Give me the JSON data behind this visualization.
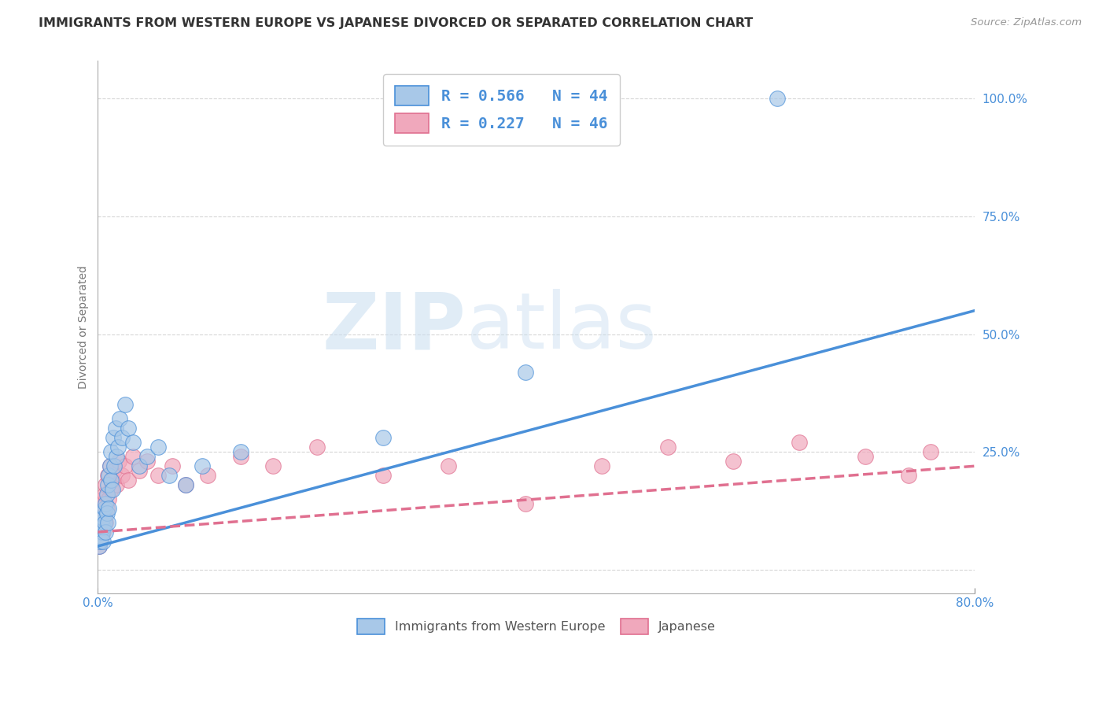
{
  "title": "IMMIGRANTS FROM WESTERN EUROPE VS JAPANESE DIVORCED OR SEPARATED CORRELATION CHART",
  "source_text": "Source: ZipAtlas.com",
  "ylabel": "Divorced or Separated",
  "x_min": 0.0,
  "x_max": 0.8,
  "y_min": -0.05,
  "y_max": 1.08,
  "x_ticks": [
    0.0,
    0.8
  ],
  "x_tick_labels": [
    "0.0%",
    "80.0%"
  ],
  "y_ticks": [
    0.0,
    0.25,
    0.5,
    0.75,
    1.0
  ],
  "y_tick_labels": [
    "",
    "25.0%",
    "50.0%",
    "75.0%",
    "100.0%"
  ],
  "legend_entries": [
    {
      "label": "R = 0.566   N = 44"
    },
    {
      "label": "R = 0.227   N = 46"
    }
  ],
  "legend_bottom_labels": [
    "Immigrants from Western Europe",
    "Japanese"
  ],
  "blue_scatter_x": [
    0.001,
    0.002,
    0.002,
    0.003,
    0.003,
    0.004,
    0.004,
    0.005,
    0.005,
    0.005,
    0.006,
    0.006,
    0.007,
    0.007,
    0.008,
    0.008,
    0.009,
    0.009,
    0.01,
    0.01,
    0.011,
    0.012,
    0.012,
    0.013,
    0.014,
    0.015,
    0.016,
    0.017,
    0.018,
    0.02,
    0.022,
    0.025,
    0.028,
    0.032,
    0.038,
    0.045,
    0.055,
    0.065,
    0.08,
    0.095,
    0.13,
    0.26,
    0.39,
    0.62
  ],
  "blue_scatter_y": [
    0.05,
    0.08,
    0.06,
    0.1,
    0.07,
    0.08,
    0.12,
    0.09,
    0.06,
    0.11,
    0.1,
    0.13,
    0.08,
    0.14,
    0.12,
    0.16,
    0.1,
    0.18,
    0.13,
    0.2,
    0.22,
    0.19,
    0.25,
    0.17,
    0.28,
    0.22,
    0.3,
    0.24,
    0.26,
    0.32,
    0.28,
    0.35,
    0.3,
    0.27,
    0.22,
    0.24,
    0.26,
    0.2,
    0.18,
    0.22,
    0.25,
    0.28,
    0.42,
    1.0
  ],
  "pink_scatter_x": [
    0.001,
    0.001,
    0.002,
    0.002,
    0.003,
    0.003,
    0.004,
    0.004,
    0.005,
    0.005,
    0.006,
    0.006,
    0.007,
    0.007,
    0.008,
    0.009,
    0.01,
    0.011,
    0.012,
    0.013,
    0.015,
    0.017,
    0.019,
    0.022,
    0.025,
    0.028,
    0.032,
    0.038,
    0.045,
    0.055,
    0.068,
    0.08,
    0.1,
    0.13,
    0.16,
    0.2,
    0.26,
    0.32,
    0.39,
    0.46,
    0.52,
    0.58,
    0.64,
    0.7,
    0.74,
    0.76
  ],
  "pink_scatter_y": [
    0.05,
    0.08,
    0.06,
    0.1,
    0.07,
    0.12,
    0.09,
    0.14,
    0.08,
    0.15,
    0.11,
    0.16,
    0.1,
    0.18,
    0.13,
    0.2,
    0.15,
    0.22,
    0.17,
    0.19,
    0.21,
    0.18,
    0.23,
    0.2,
    0.22,
    0.19,
    0.24,
    0.21,
    0.23,
    0.2,
    0.22,
    0.18,
    0.2,
    0.24,
    0.22,
    0.26,
    0.2,
    0.22,
    0.14,
    0.22,
    0.26,
    0.23,
    0.27,
    0.24,
    0.2,
    0.25
  ],
  "blue_line_x": [
    0.0,
    0.8
  ],
  "blue_line_y": [
    0.05,
    0.55
  ],
  "pink_line_x": [
    0.0,
    0.8
  ],
  "pink_line_y": [
    0.08,
    0.22
  ],
  "blue_color": "#4a90d9",
  "pink_color": "#e07090",
  "blue_scatter_color": "#a8c8e8",
  "pink_scatter_color": "#f0a8bc",
  "watermark_zip": "ZIP",
  "watermark_atlas": "atlas",
  "grid_color": "#bbbbbb",
  "background_color": "#ffffff",
  "title_fontsize": 11.5,
  "axis_label_fontsize": 10,
  "tick_fontsize": 11
}
